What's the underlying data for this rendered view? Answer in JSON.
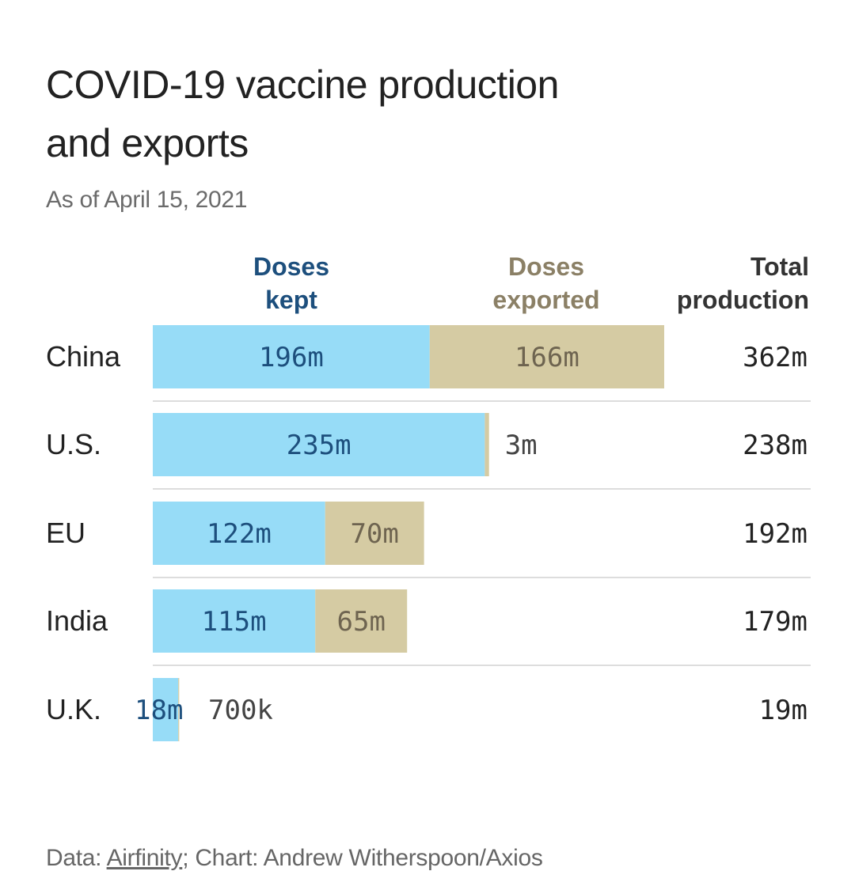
{
  "title_line1": "COVID-19 vaccine production",
  "title_line2": "and exports",
  "subtitle": "As of April 15, 2021",
  "headers": {
    "kept_line1": "Doses",
    "kept_line2": "kept",
    "exported_line1": "Doses",
    "exported_line2": "exported",
    "total_line1": "Total",
    "total_line2": "production"
  },
  "footer": {
    "prefix": "Data: ",
    "source_link": "Airfinity",
    "suffix": "; Chart: Andrew Witherspoon/Axios"
  },
  "colors": {
    "kept": "#97dcf7",
    "exported": "#d5cba3",
    "kept_text": "#1d4f7d",
    "exported_text": "#6e6450",
    "divider": "#dddddd"
  },
  "chart_data": {
    "type": "bar",
    "orientation": "horizontal",
    "stacked": true,
    "categories": [
      "China",
      "U.S.",
      "EU",
      "India",
      "U.K."
    ],
    "series": [
      {
        "name": "Doses kept",
        "values": [
          196,
          235,
          122,
          115,
          18
        ]
      },
      {
        "name": "Doses exported",
        "values": [
          166,
          3,
          70,
          65,
          0.7
        ]
      }
    ],
    "totals": [
      362,
      238,
      192,
      179,
      19
    ],
    "unit": "m",
    "value_labels": {
      "kept": [
        "196m",
        "235m",
        "122m",
        "115m",
        "18m"
      ],
      "exported": [
        "166m",
        "3m",
        "70m",
        "65m",
        "700k"
      ],
      "totals": [
        "362m",
        "238m",
        "192m",
        "179m",
        "19m"
      ]
    },
    "xlim": [
      0,
      362
    ],
    "grid": false,
    "legend": "top (column headers)"
  }
}
